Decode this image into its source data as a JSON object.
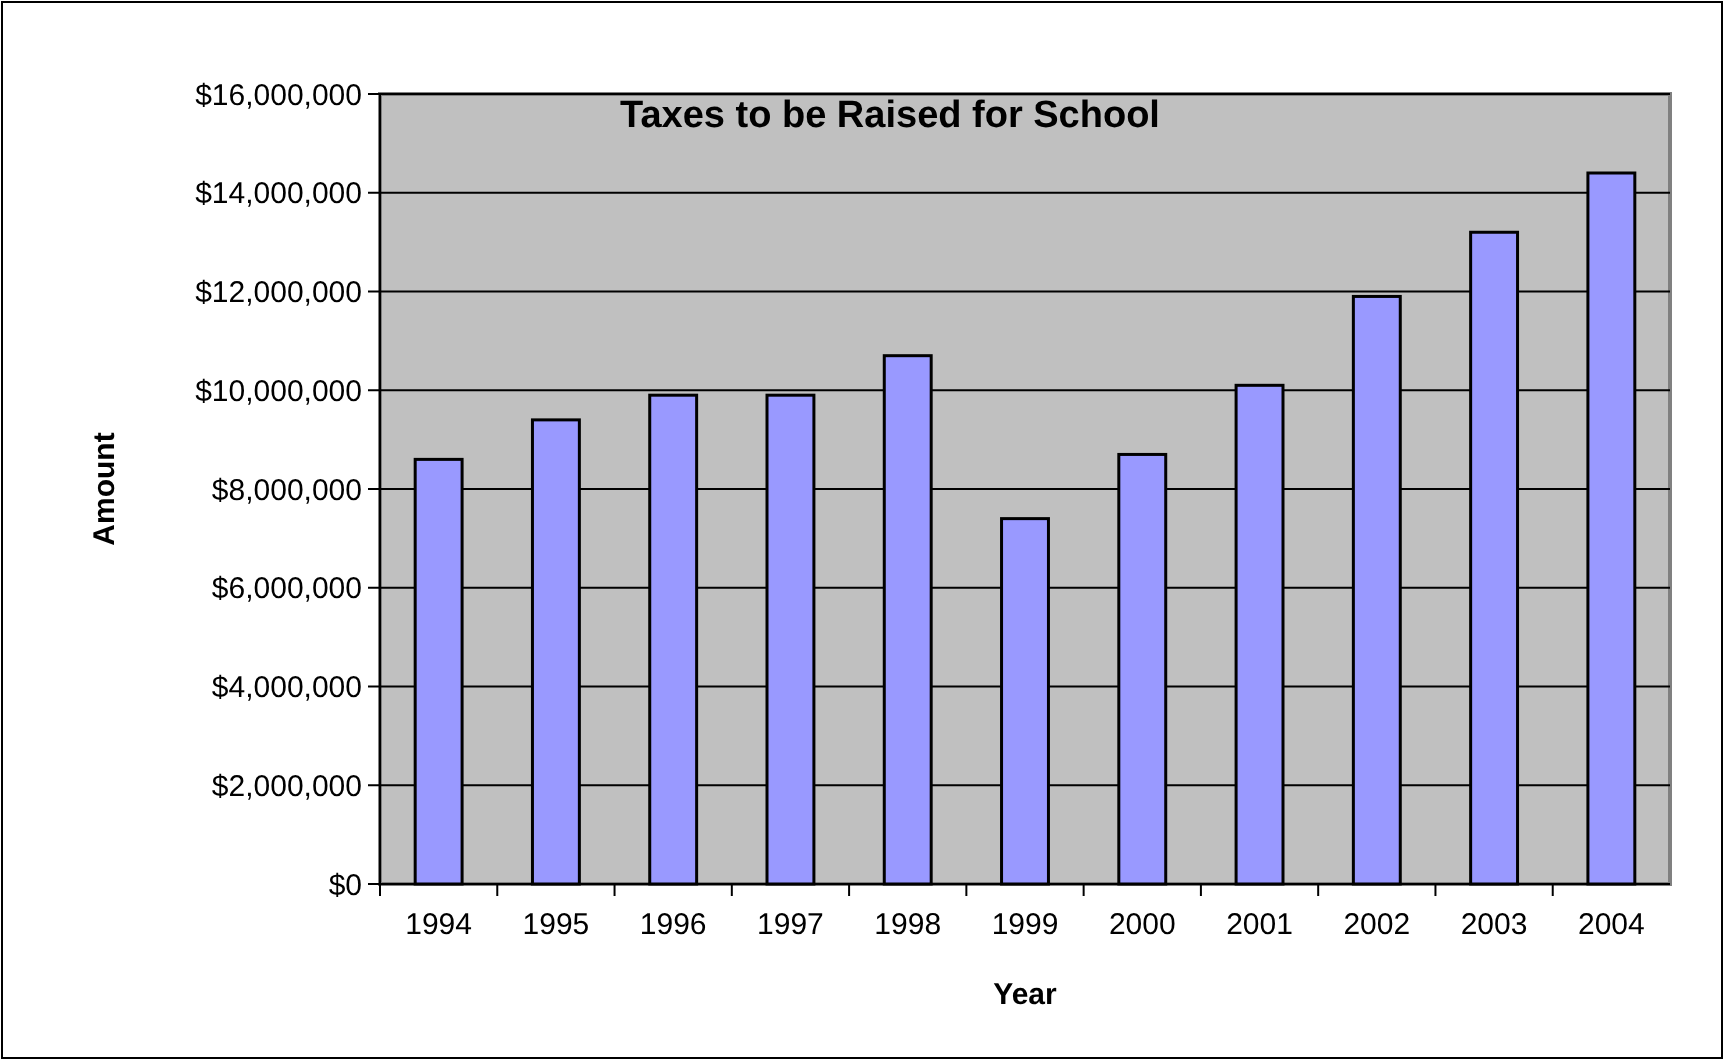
{
  "chart_data": {
    "type": "bar",
    "title": "Taxes to be Raised for School",
    "xlabel": "Year",
    "ylabel": "Amount",
    "categories": [
      "1994",
      "1995",
      "1996",
      "1997",
      "1998",
      "1999",
      "2000",
      "2001",
      "2002",
      "2003",
      "2004"
    ],
    "values": [
      8600000,
      9400000,
      9900000,
      9900000,
      10700000,
      7400000,
      8700000,
      10100000,
      11900000,
      13200000,
      14400000
    ],
    "color": "#9999ff",
    "ylim": [
      0,
      16000000
    ],
    "yticks": [
      {
        "value": 0,
        "label": "$0"
      },
      {
        "value": 2000000,
        "label": "$2,000,000"
      },
      {
        "value": 4000000,
        "label": "$4,000,000"
      },
      {
        "value": 6000000,
        "label": "$6,000,000"
      },
      {
        "value": 8000000,
        "label": "$8,000,000"
      },
      {
        "value": 10000000,
        "label": "$10,000,000"
      },
      {
        "value": 12000000,
        "label": "$12,000,000"
      },
      {
        "value": 14000000,
        "label": "$14,000,000"
      },
      {
        "value": 16000000,
        "label": "$16,000,000"
      }
    ],
    "grid": true
  }
}
